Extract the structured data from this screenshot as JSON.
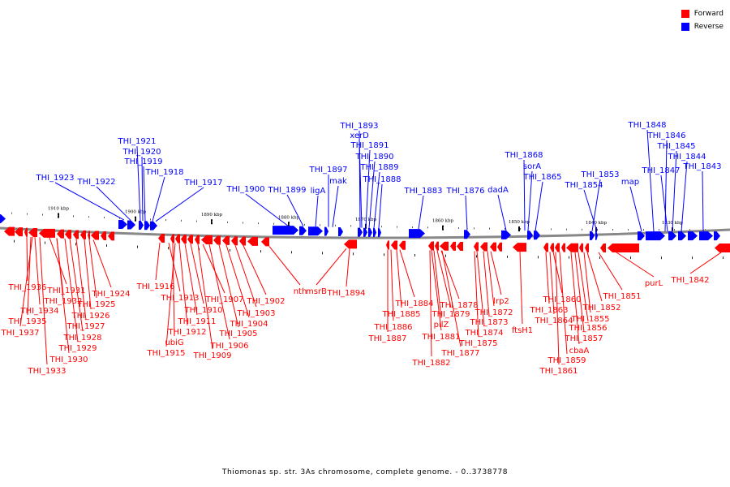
{
  "legend": {
    "forward_label": "Forward",
    "reverse_label": "Reverse",
    "forward_color": "#ff0000",
    "reverse_color": "#0000ff"
  },
  "caption": "Thiomonas sp. str. 3As chromosome, complete genome. - 0..3738778",
  "scale_labels": [
    "1910 kbp",
    "1900 kbp",
    "1890 kbp",
    "1880 kbp",
    "1870 kbp",
    "1860 kbp",
    "1850 kbp",
    "1840 kbp",
    "1830 kbp"
  ],
  "reverse_gene_labels": [
    "THI_1923",
    "THI_1922",
    "THI_1921",
    "THI_1920",
    "THI_1919",
    "THI_1918",
    "THI_1917",
    "THI_1900",
    "THI_1899",
    "ligA",
    "THI_1897",
    "mak",
    "THI_1893",
    "xerD",
    "THI_1891",
    "THI_1890",
    "THI_1889",
    "THI_1888",
    "THI_1883",
    "THI_1876",
    "dadA",
    "THI_1868",
    "sorA",
    "THI_1865",
    "THI_1853",
    "THI_1854",
    "map",
    "THI_1848",
    "THI_1846",
    "THI_1845",
    "THI_1847",
    "THI_1844",
    "THI_1843"
  ],
  "forward_gene_labels": [
    "THI_1936",
    "THI_1935",
    "THI_1934",
    "THI_1937",
    "THI_1931",
    "THI_1932",
    "THI_1933",
    "THI_1930",
    "THI_1929",
    "THI_1928",
    "THI_1927",
    "THI_1926",
    "THI_1925",
    "THI_1924",
    "THI_1916",
    "THI_1913",
    "ubiG",
    "THI_1915",
    "THI_1912",
    "THI_1911",
    "THI_1910",
    "THI_1909",
    "THI_1907",
    "THI_1906",
    "THI_1905",
    "THI_1904",
    "THI_1903",
    "THI_1902",
    "nth",
    "msrB",
    "THI_1894",
    "THI_1884",
    "THI_1885",
    "THI_1886",
    "THI_1887",
    "THI_1878",
    "THI_1879",
    "pilZ",
    "THI_1881",
    "THI_1882",
    "THI_1877",
    "THI_1875",
    "THI_1874",
    "THI_1873",
    "THI_1872",
    "lrp2",
    "ftsH1",
    "THI_1860",
    "THI_1863",
    "THI_1864",
    "THI_1861",
    "THI_1859",
    "cbaA",
    "THI_1857",
    "THI_1856",
    "THI_1855",
    "THI_1852",
    "THI_1851",
    "purL",
    "THI_1842"
  ]
}
